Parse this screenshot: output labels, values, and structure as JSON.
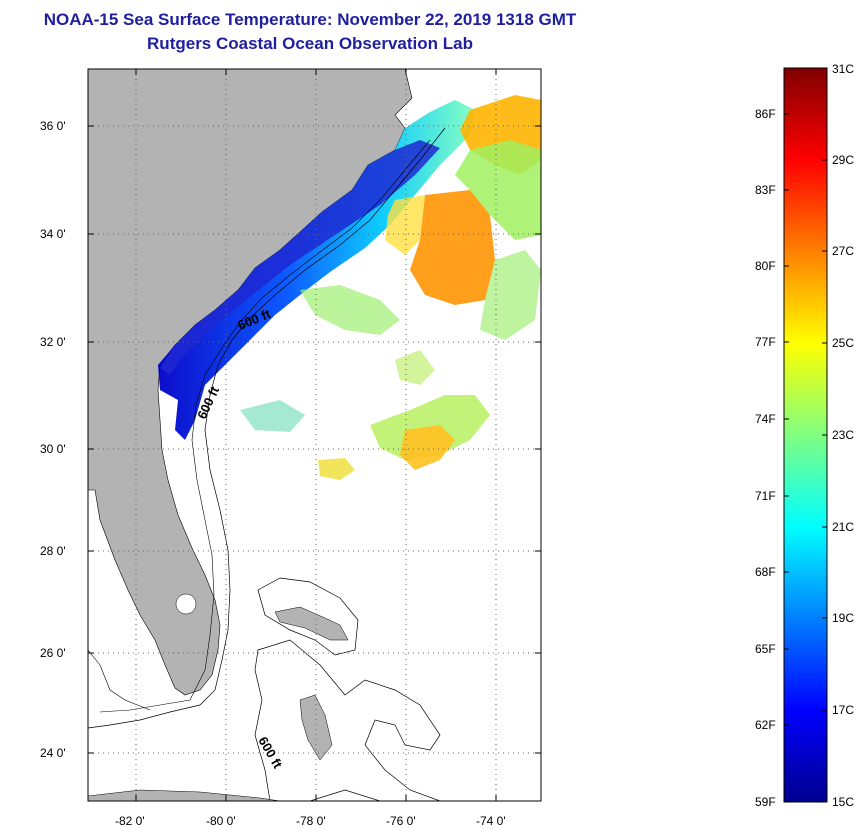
{
  "title": {
    "line1": "NOAA-15 Sea Surface Temperature:  November 22, 2019 1318 GMT",
    "line2": "Rutgers Coastal Ocean Observation Lab"
  },
  "map": {
    "lat_labels": [
      "36 0'",
      "34 0'",
      "32 0'",
      "30 0'",
      "28 0'",
      "26 0'",
      "24 0'"
    ],
    "lon_labels": [
      "-82 0'",
      "-80 0'",
      "-78 0'",
      "-76 0'",
      "-74 0'"
    ],
    "contour_labels": [
      "600 ft",
      "600 ft",
      "600 ft"
    ],
    "land_color": "#b3b3b3"
  },
  "colorbar": {
    "fahrenheit": [
      "86F",
      "83F",
      "80F",
      "77F",
      "74F",
      "71F",
      "68F",
      "65F",
      "62F",
      "59F"
    ],
    "celsius": [
      "31C",
      "29C",
      "27C",
      "25C",
      "23C",
      "21C",
      "19C",
      "17C",
      "15C"
    ],
    "colors": [
      "#00008f",
      "#0000ff",
      "#0080ff",
      "#00ffff",
      "#80ff80",
      "#ffff00",
      "#ff8000",
      "#ff0000",
      "#800000"
    ]
  }
}
